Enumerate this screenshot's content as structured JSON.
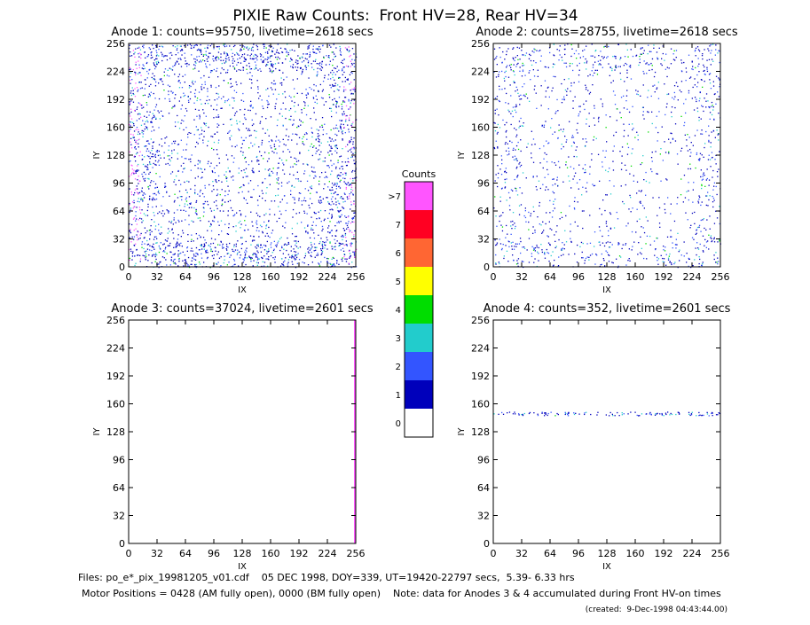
{
  "title": "PIXIE Raw Counts:  Front HV=28, Rear HV=34",
  "chart_data": [
    {
      "type": "heatmap",
      "title": "Anode 1: counts=95750, livetime=2618 secs",
      "xlabel": "IX",
      "ylabel": "IY",
      "xlim": [
        0,
        256
      ],
      "ylim": [
        0,
        256
      ],
      "xticks": [
        0,
        32,
        64,
        96,
        128,
        160,
        192,
        224,
        256
      ],
      "yticks": [
        0,
        32,
        64,
        96,
        128,
        160,
        192,
        224,
        256
      ]
    },
    {
      "type": "heatmap",
      "title": "Anode 2: counts=28755, livetime=2618 secs",
      "xlabel": "IX",
      "ylabel": "IY",
      "xlim": [
        0,
        256
      ],
      "ylim": [
        0,
        256
      ],
      "xticks": [
        0,
        32,
        64,
        96,
        128,
        160,
        192,
        224,
        256
      ],
      "yticks": [
        0,
        32,
        64,
        96,
        128,
        160,
        192,
        224,
        256
      ]
    },
    {
      "type": "heatmap",
      "title": "Anode 3: counts=37024, livetime=2601 secs",
      "xlabel": "IX",
      "ylabel": "IY",
      "xlim": [
        0,
        256
      ],
      "ylim": [
        0,
        256
      ],
      "xticks": [
        0,
        32,
        64,
        96,
        128,
        160,
        192,
        224,
        256
      ],
      "yticks": [
        0,
        32,
        64,
        96,
        128,
        160,
        192,
        224,
        256
      ]
    },
    {
      "type": "heatmap",
      "title": "Anode 4: counts=352, livetime=2601 secs",
      "xlabel": "IX",
      "ylabel": "IY",
      "xlim": [
        0,
        256
      ],
      "ylim": [
        0,
        256
      ],
      "xticks": [
        0,
        32,
        64,
        96,
        128,
        160,
        192,
        224,
        256
      ],
      "yticks": [
        0,
        32,
        64,
        96,
        128,
        160,
        192,
        224,
        256
      ]
    }
  ],
  "colorbar": {
    "title": "Counts",
    "labels": [
      "0",
      "1",
      "2",
      "3",
      "4",
      "5",
      "6",
      "7",
      ">7"
    ],
    "colors": [
      "#ffffff",
      "#0000bb",
      "#3355ff",
      "#22cccc",
      "#00dd00",
      "#ffff00",
      "#ff6633",
      "#ff0022",
      "#ff55ff"
    ]
  },
  "footer": [
    "Files: po_e*_pix_19981205_v01.cdf    05 DEC 1998, DOY=339, UT=19420-22797 secs,  5.39- 6.33 hrs",
    "Motor Positions = 0428 (AM fully open), 0000 (BM fully open)    Note: data for Anodes 3 & 4 accumulated during Front HV-on times",
    "(created:  9-Dec-1998 04:43:44.00)"
  ]
}
